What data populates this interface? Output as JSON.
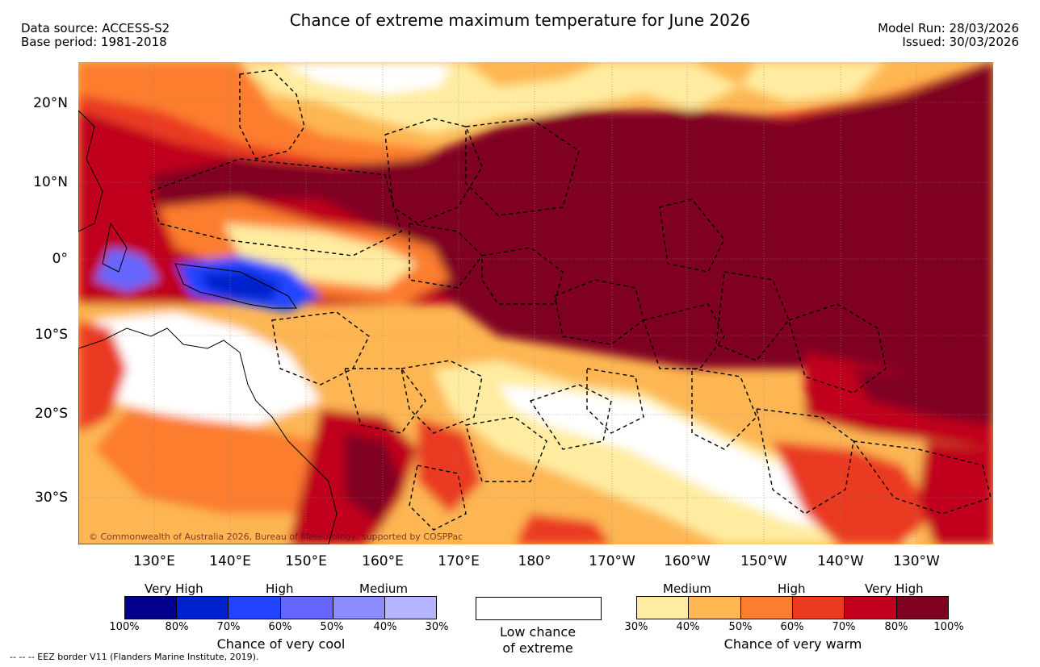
{
  "header": {
    "title": "Chance of extreme maximum temperature for June 2026",
    "data_source": "Data source: ACCESS-S2",
    "base_period": "Base period: 1981-2018",
    "model_run": "Model Run: 28/03/2026",
    "issued": "Issued: 30/03/2026"
  },
  "axes": {
    "lat_labels": [
      "20°N",
      "10°N",
      "0°",
      "10°S",
      "20°S",
      "30°S"
    ],
    "lon_labels": [
      "130°E",
      "140°E",
      "150°E",
      "160°E",
      "170°E",
      "180°",
      "170°W",
      "160°W",
      "150°W",
      "140°W",
      "130°W"
    ]
  },
  "map": {
    "copyright": "© Commonwealth of Australia 2026, Bureau of Meteorology, supported by COSPPac"
  },
  "legend_cool": {
    "categories": [
      "Very High",
      "High",
      "Medium"
    ],
    "colors": [
      "#00008c",
      "#0022cc",
      "#2244ff",
      "#6666ff",
      "#8c8cff",
      "#b4b4ff"
    ],
    "ticks": [
      "100%",
      "80%",
      "70%",
      "60%",
      "50%",
      "40%",
      "30%"
    ],
    "title": "Chance of very cool"
  },
  "legend_low": {
    "line1": "Low chance",
    "line2": "of extreme"
  },
  "legend_warm": {
    "categories": [
      "Medium",
      "High",
      "Very High"
    ],
    "colors": [
      "#ffeca0",
      "#fdb652",
      "#fc7d2d",
      "#ea3a20",
      "#c0001c",
      "#800020"
    ],
    "ticks": [
      "30%",
      "40%",
      "50%",
      "60%",
      "70%",
      "80%",
      "100%"
    ],
    "title": "Chance of very warm"
  },
  "footer": {
    "eez": "--  --  -- EEZ border V11 (Flanders Marine Institute, 2019)."
  }
}
